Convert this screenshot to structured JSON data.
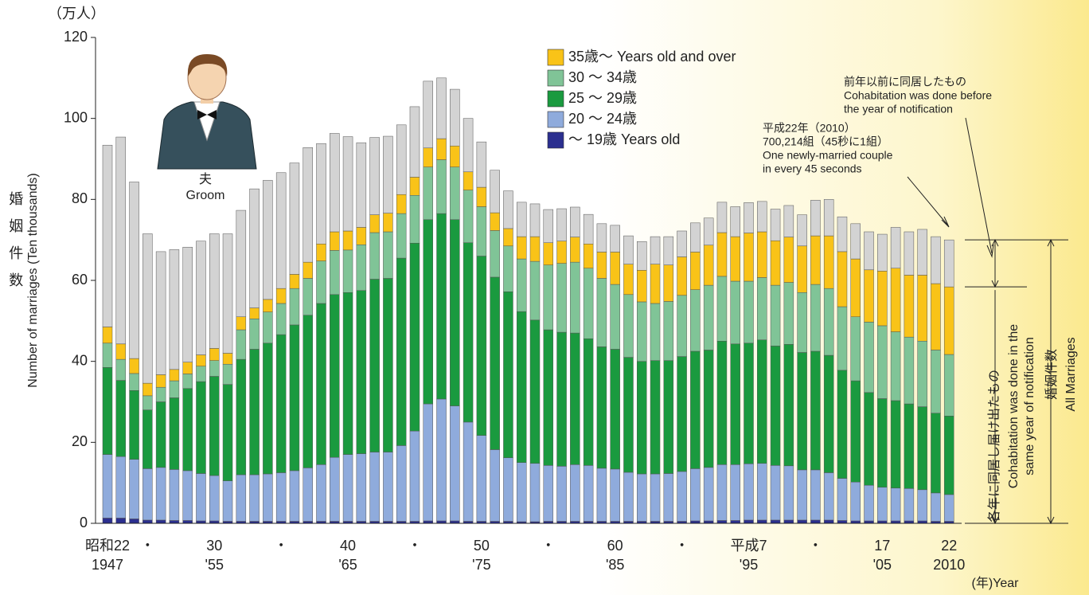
{
  "chart_data": {
    "type": "stacked_bar",
    "unit_label": "（万人）",
    "y_label_ja": "婚姻件数",
    "y_label_en": "Number of marriages (Ten thousands)",
    "x_unit": "(年)Year",
    "figure_labels": [
      "夫",
      "Groom"
    ],
    "categories": [
      [
        "昭和22",
        "1947"
      ],
      null,
      null,
      [
        "・"
      ],
      null,
      null,
      null,
      null,
      [
        "30",
        "'55"
      ],
      null,
      null,
      null,
      null,
      [
        "・"
      ],
      null,
      null,
      null,
      null,
      [
        "40",
        "'65"
      ],
      null,
      null,
      null,
      null,
      [
        "・"
      ],
      null,
      null,
      null,
      null,
      [
        "50",
        "'75"
      ],
      null,
      null,
      null,
      null,
      [
        "・"
      ],
      null,
      null,
      null,
      null,
      [
        "60",
        "'85"
      ],
      null,
      null,
      null,
      null,
      [
        "・"
      ],
      null,
      null,
      null,
      null,
      [
        "平成7",
        "'95"
      ],
      null,
      null,
      null,
      null,
      [
        "・"
      ],
      null,
      null,
      null,
      null,
      [
        "17",
        "'05"
      ],
      null,
      null,
      null,
      null,
      [
        "22",
        "2010"
      ]
    ],
    "ylim": [
      0,
      120
    ],
    "yticks": [
      0,
      20,
      40,
      60,
      80,
      100,
      120
    ],
    "series": [
      {
        "name": "～ 19歳 Years old",
        "color": "#2b2f8f",
        "values": [
          1.3,
          1.3,
          1.1,
          0.8,
          0.8,
          0.7,
          0.7,
          0.6,
          0.6,
          0.5,
          0.5,
          0.5,
          0.5,
          0.5,
          0.5,
          0.5,
          0.5,
          0.5,
          0.5,
          0.5,
          0.5,
          0.5,
          0.5,
          0.5,
          0.6,
          0.6,
          0.6,
          0.5,
          0.5,
          0.5,
          0.5,
          0.4,
          0.4,
          0.5,
          0.5,
          0.5,
          0.5,
          0.5,
          0.5,
          0.5,
          0.5,
          0.5,
          0.5,
          0.5,
          0.6,
          0.6,
          0.7,
          0.7,
          0.8,
          0.8,
          0.8,
          0.8,
          0.8,
          0.8,
          0.8,
          0.7,
          0.6,
          0.6,
          0.6,
          0.6,
          0.6,
          0.6,
          0.5,
          0.5
        ]
      },
      {
        "name": "20 ～ 24歳",
        "color": "#8fabdc",
        "values": [
          15.7,
          15.2,
          14.7,
          12.7,
          13.0,
          12.6,
          12.3,
          11.7,
          11.2,
          10.0,
          11.5,
          11.5,
          11.7,
          12.0,
          12.5,
          13.2,
          14.0,
          15.8,
          16.5,
          16.7,
          17.1,
          17.1,
          18.7,
          22.3,
          28.9,
          30.1,
          28.4,
          24.5,
          21.2,
          17.7,
          15.7,
          14.6,
          14.4,
          13.8,
          13.6,
          14.0,
          13.8,
          13.1,
          12.9,
          12.1,
          11.7,
          11.7,
          11.8,
          12.3,
          12.9,
          13.2,
          13.8,
          13.8,
          13.9,
          14.0,
          13.5,
          13.4,
          12.4,
          12.4,
          11.7,
          10.4,
          9.6,
          8.8,
          8.3,
          8.1,
          8.0,
          7.7,
          7.0,
          6.6
        ]
      },
      {
        "name": "25 ～ 29歳",
        "color": "#1a9a3f",
        "values": [
          21.5,
          18.8,
          17.0,
          14.5,
          16.2,
          17.7,
          20.3,
          22.7,
          24.5,
          23.8,
          28.5,
          31.0,
          32.3,
          34.1,
          36.0,
          37.7,
          39.8,
          40.2,
          40.0,
          40.3,
          42.7,
          42.9,
          46.3,
          46.4,
          45.5,
          45.8,
          46.0,
          44.3,
          44.3,
          42.6,
          41.0,
          37.3,
          35.4,
          33.5,
          33.1,
          32.5,
          31.3,
          30.0,
          29.6,
          28.4,
          27.8,
          28.0,
          27.9,
          28.4,
          29.0,
          29.0,
          30.5,
          29.8,
          29.8,
          30.5,
          29.5,
          30.0,
          29.0,
          29.3,
          29.0,
          26.7,
          25.0,
          22.9,
          21.9,
          21.6,
          20.9,
          20.5,
          19.7,
          19.4
        ]
      },
      {
        "name": "30 ～ 34歳",
        "color": "#80c497",
        "values": [
          6.0,
          5.2,
          4.2,
          3.5,
          3.6,
          4.2,
          3.6,
          3.8,
          3.9,
          5.0,
          7.3,
          7.5,
          7.7,
          7.7,
          9.0,
          9.1,
          10.5,
          10.9,
          10.5,
          11.3,
          11.5,
          11.5,
          11.0,
          11.8,
          13.0,
          13.3,
          13.0,
          13.0,
          12.2,
          11.5,
          11.3,
          13.0,
          14.5,
          16.0,
          17.0,
          17.5,
          17.4,
          16.9,
          16.0,
          15.5,
          14.7,
          14.1,
          14.6,
          15.1,
          15.2,
          16.0,
          16.0,
          15.5,
          15.3,
          15.4,
          15.0,
          15.3,
          14.8,
          16.5,
          16.5,
          15.7,
          15.8,
          17.4,
          18.0,
          17.0,
          16.5,
          16.2,
          15.6,
          15.2
        ]
      },
      {
        "name": "35歳～ Years old and over",
        "color": "#f9c318",
        "values": [
          4.0,
          3.8,
          3.7,
          3.1,
          3.1,
          2.8,
          2.9,
          2.8,
          3.0,
          2.7,
          3.2,
          2.7,
          3.1,
          3.7,
          3.5,
          4.0,
          4.2,
          4.6,
          4.7,
          4.3,
          4.4,
          4.6,
          4.7,
          4.5,
          4.7,
          5.2,
          5.2,
          4.5,
          4.8,
          4.4,
          4.3,
          5.5,
          6.1,
          5.5,
          5.5,
          6.2,
          6.0,
          6.5,
          8.0,
          7.5,
          7.8,
          9.7,
          9.0,
          9.5,
          9.3,
          9.9,
          10.8,
          11.0,
          11.9,
          11.3,
          11.0,
          11.2,
          11.5,
          12.0,
          13.0,
          13.6,
          14.3,
          12.9,
          13.5,
          15.7,
          15.3,
          16.3,
          16.4,
          16.7
        ]
      },
      {
        "name": "前年以前に同居したもの",
        "name_en": [
          "Cohabitation was done before",
          "the year of notification"
        ],
        "in_legend": false,
        "color": "#d3d3d3",
        "values": [
          44.9,
          51.1,
          43.6,
          36.9,
          30.4,
          29.6,
          28.4,
          28.1,
          28.3,
          29.5,
          26.3,
          29.4,
          29.4,
          28.6,
          27.5,
          28.3,
          24.8,
          24.3,
          23.3,
          20.9,
          19.1,
          19.0,
          17.2,
          17.4,
          16.5,
          15.0,
          14.0,
          13.2,
          11.2,
          10.5,
          9.3,
          8.5,
          8.1,
          8.2,
          8.0,
          7.4,
          7.3,
          7.0,
          6.6,
          7.0,
          7.1,
          6.8,
          7.0,
          6.4,
          7.2,
          6.7,
          7.5,
          7.4,
          7.5,
          7.5,
          7.8,
          7.8,
          7.7,
          8.8,
          9.0,
          8.6,
          8.7,
          9.4,
          9.1,
          10.1,
          10.7,
          11.3,
          11.6,
          11.6
        ]
      }
    ],
    "annotation_2010": [
      "平成22年（2010）",
      "700,214組（45秒に1組）",
      "One newly-married couple",
      "in every 45 seconds"
    ],
    "bracket_same_year": {
      "ja": "各年に同居し届け出たもの",
      "en": [
        "Cohabitation was done in the",
        "same year of notification"
      ]
    },
    "bracket_all": {
      "ja": "婚姻件数",
      "en": "All Marriages"
    }
  }
}
